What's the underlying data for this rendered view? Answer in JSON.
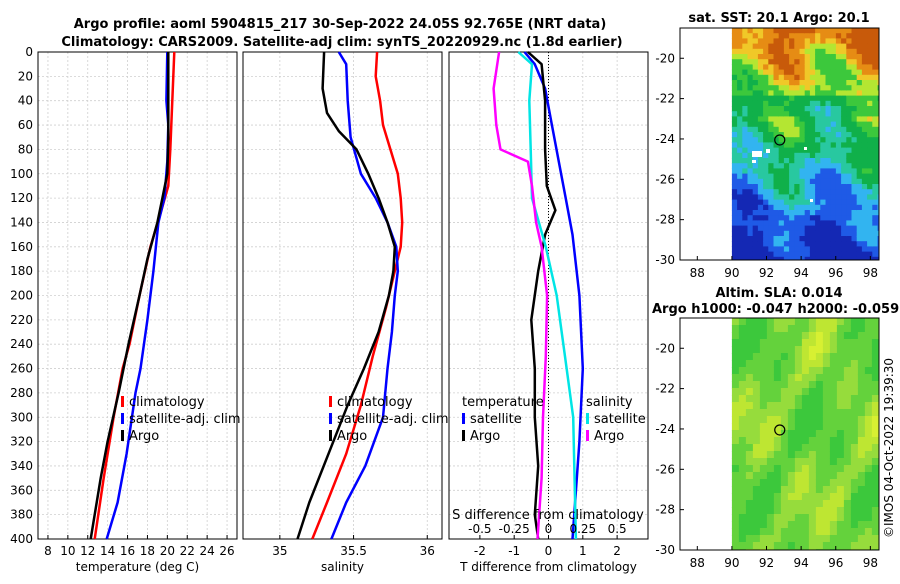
{
  "title_line1": "Argo profile: aoml 5904815_217 30-Sep-2022 24.05S 92.765E (NRT data)",
  "title_line2": "Climatology: CARS2009. Satellite-adj clim: synTS_20220929.nc (1.8d earlier)",
  "watermark": "©IMOS 04-Oct-2022 19:39:30",
  "colors": {
    "clim": "#ff0000",
    "sat": "#0000ff",
    "argo": "#000000",
    "sal_sat": "#00e5e5",
    "sal_argo": "#ff00ff"
  },
  "chart_data": [
    {
      "id": "temperature",
      "type": "line",
      "xlabel": "temperature (deg C)",
      "ylabel": "",
      "xlim": [
        7,
        27
      ],
      "ylim": [
        0,
        400
      ],
      "xticks": [
        8,
        10,
        12,
        14,
        16,
        18,
        20,
        22,
        24,
        26
      ],
      "yticks": [
        0,
        20,
        40,
        60,
        80,
        100,
        120,
        140,
        160,
        180,
        200,
        220,
        240,
        260,
        280,
        300,
        320,
        340,
        360,
        380,
        400
      ],
      "legend": {
        "placement": "lower-middle",
        "entries": [
          "climatology",
          "satellite-adj. clim",
          "Argo"
        ]
      },
      "series": [
        {
          "name": "climatology",
          "color": "#ff0000",
          "points": [
            [
              20.7,
              0
            ],
            [
              20.5,
              40
            ],
            [
              20.3,
              80
            ],
            [
              20.1,
              110
            ],
            [
              19.4,
              130
            ],
            [
              18.3,
              160
            ],
            [
              17.2,
              200
            ],
            [
              16.2,
              240
            ],
            [
              15.5,
              260
            ],
            [
              14.6,
              300
            ],
            [
              13.6,
              350
            ],
            [
              12.7,
              400
            ]
          ]
        },
        {
          "name": "satellite-adj. clim",
          "color": "#0000ff",
          "points": [
            [
              20.0,
              0
            ],
            [
              19.9,
              40
            ],
            [
              20.1,
              60
            ],
            [
              20.0,
              90
            ],
            [
              19.7,
              120
            ],
            [
              19.1,
              140
            ],
            [
              18.6,
              180
            ],
            [
              18.0,
              220
            ],
            [
              17.3,
              260
            ],
            [
              16.8,
              280
            ],
            [
              15.9,
              330
            ],
            [
              15.0,
              370
            ],
            [
              13.9,
              400
            ]
          ]
        },
        {
          "name": "Argo",
          "color": "#000000",
          "points": [
            [
              20.1,
              0
            ],
            [
              20.1,
              40
            ],
            [
              20.1,
              70
            ],
            [
              20.0,
              100
            ],
            [
              19.5,
              120
            ],
            [
              19.0,
              140
            ],
            [
              18.0,
              170
            ],
            [
              17.2,
              200
            ],
            [
              16.1,
              240
            ],
            [
              15.1,
              280
            ],
            [
              14.0,
              320
            ],
            [
              13.3,
              350
            ],
            [
              12.3,
              400
            ]
          ]
        }
      ]
    },
    {
      "id": "salinity",
      "type": "line",
      "xlabel": "salinity",
      "xlim": [
        34.75,
        36.1
      ],
      "ylim": [
        0,
        400
      ],
      "xticks": [
        35,
        35.5,
        36
      ],
      "legend": {
        "placement": "lower-middle",
        "entries": [
          "climatology",
          "satellite-adj. clim",
          "Argo"
        ]
      },
      "series": [
        {
          "name": "climatology",
          "color": "#ff0000",
          "points": [
            [
              35.66,
              0
            ],
            [
              35.65,
              20
            ],
            [
              35.68,
              40
            ],
            [
              35.7,
              60
            ],
            [
              35.75,
              80
            ],
            [
              35.8,
              100
            ],
            [
              35.82,
              120
            ],
            [
              35.83,
              140
            ],
            [
              35.82,
              160
            ],
            [
              35.78,
              180
            ],
            [
              35.72,
              210
            ],
            [
              35.63,
              250
            ],
            [
              35.55,
              290
            ],
            [
              35.45,
              330
            ],
            [
              35.32,
              370
            ],
            [
              35.22,
              400
            ]
          ]
        },
        {
          "name": "satellite-adj. clim",
          "color": "#0000ff",
          "points": [
            [
              35.4,
              0
            ],
            [
              35.45,
              10
            ],
            [
              35.46,
              40
            ],
            [
              35.48,
              70
            ],
            [
              35.55,
              100
            ],
            [
              35.65,
              120
            ],
            [
              35.73,
              140
            ],
            [
              35.79,
              160
            ],
            [
              35.8,
              180
            ],
            [
              35.78,
              200
            ],
            [
              35.76,
              230
            ],
            [
              35.73,
              260
            ],
            [
              35.7,
              300
            ],
            [
              35.58,
              340
            ],
            [
              35.45,
              370
            ],
            [
              35.35,
              400
            ]
          ]
        },
        {
          "name": "Argo",
          "color": "#000000",
          "points": [
            [
              35.3,
              0
            ],
            [
              35.29,
              30
            ],
            [
              35.32,
              50
            ],
            [
              35.4,
              65
            ],
            [
              35.52,
              80
            ],
            [
              35.6,
              100
            ],
            [
              35.67,
              120
            ],
            [
              35.73,
              140
            ],
            [
              35.78,
              160
            ],
            [
              35.77,
              180
            ],
            [
              35.74,
              200
            ],
            [
              35.67,
              230
            ],
            [
              35.57,
              260
            ],
            [
              35.46,
              290
            ],
            [
              35.33,
              330
            ],
            [
              35.2,
              370
            ],
            [
              35.12,
              400
            ]
          ]
        }
      ]
    },
    {
      "id": "differences",
      "type": "line",
      "xlabel": "T difference from climatology",
      "top_label": "S difference from climatology",
      "xlim": [
        -2.9,
        2.9
      ],
      "ylim": [
        0,
        400
      ],
      "xticks": [
        -2,
        -1,
        0,
        1,
        2
      ],
      "sal_ticks": [
        -0.5,
        -0.25,
        0,
        0.25,
        0.5
      ],
      "legend_temp": {
        "title": "temperature",
        "entries": [
          "satellite",
          "Argo"
        ]
      },
      "legend_sal": {
        "title": "salinity",
        "entries": [
          "satellite",
          "Argo"
        ]
      },
      "series": [
        {
          "name": "temperature satellite",
          "color": "#0000ff",
          "points": [
            [
              -0.7,
              0
            ],
            [
              -0.4,
              10
            ],
            [
              -0.1,
              30
            ],
            [
              0.1,
              60
            ],
            [
              0.3,
              90
            ],
            [
              0.5,
              120
            ],
            [
              0.7,
              150
            ],
            [
              0.9,
              200
            ],
            [
              1.0,
              260
            ],
            [
              0.9,
              320
            ],
            [
              0.7,
              400
            ]
          ]
        },
        {
          "name": "temperature Argo",
          "color": "#000000",
          "points": [
            [
              -0.6,
              0
            ],
            [
              -0.2,
              10
            ],
            [
              -0.1,
              40
            ],
            [
              -0.1,
              80
            ],
            [
              -0.05,
              110
            ],
            [
              0.2,
              130
            ],
            [
              -0.1,
              150
            ],
            [
              -0.3,
              180
            ],
            [
              -0.5,
              220
            ],
            [
              -0.4,
              260
            ],
            [
              -0.4,
              300
            ],
            [
              -0.3,
              340
            ],
            [
              -0.4,
              380
            ],
            [
              -0.3,
              400
            ]
          ]
        },
        {
          "name": "salinity satellite",
          "color": "#00e5e5",
          "points": [
            [
              -0.22,
              0
            ],
            [
              -0.12,
              10
            ],
            [
              -0.14,
              40
            ],
            [
              -0.13,
              80
            ],
            [
              -0.12,
              120
            ],
            [
              -0.02,
              160
            ],
            [
              0.06,
              200
            ],
            [
              0.12,
              250
            ],
            [
              0.18,
              300
            ],
            [
              0.2,
              400
            ]
          ]
        },
        {
          "name": "salinity Argo",
          "color": "#ff00ff",
          "points": [
            [
              -0.36,
              0
            ],
            [
              -0.4,
              30
            ],
            [
              -0.38,
              60
            ],
            [
              -0.35,
              80
            ],
            [
              -0.15,
              90
            ],
            [
              -0.12,
              110
            ],
            [
              -0.09,
              140
            ],
            [
              -0.05,
              160
            ],
            [
              -0.01,
              200
            ],
            [
              -0.02,
              250
            ],
            [
              -0.04,
              300
            ],
            [
              -0.05,
              350
            ],
            [
              -0.08,
              400
            ]
          ]
        }
      ]
    },
    {
      "id": "sat-sst-map",
      "type": "heatmap",
      "title": "sat. SST: 20.1 Argo: 20.1",
      "xlim": [
        87,
        98.5
      ],
      "ylim": [
        -30,
        -18.5
      ],
      "xticks": [
        88,
        90,
        92,
        94,
        96,
        98
      ],
      "yticks": [
        -20,
        -22,
        -24,
        -26,
        -28,
        -30
      ],
      "argo_marker": [
        92.765,
        -24.05
      ]
    },
    {
      "id": "altim-sla-map",
      "type": "heatmap",
      "title_line1": "Altim. SLA: 0.014",
      "title_line2": "Argo h1000: -0.047 h2000: -0.059",
      "xlim": [
        87,
        98.5
      ],
      "ylim": [
        -30,
        -18.5
      ],
      "xticks": [
        88,
        90,
        92,
        94,
        96,
        98
      ],
      "yticks": [
        -20,
        -22,
        -24,
        -26,
        -28,
        -30
      ],
      "argo_marker": [
        92.765,
        -24.05
      ]
    }
  ]
}
